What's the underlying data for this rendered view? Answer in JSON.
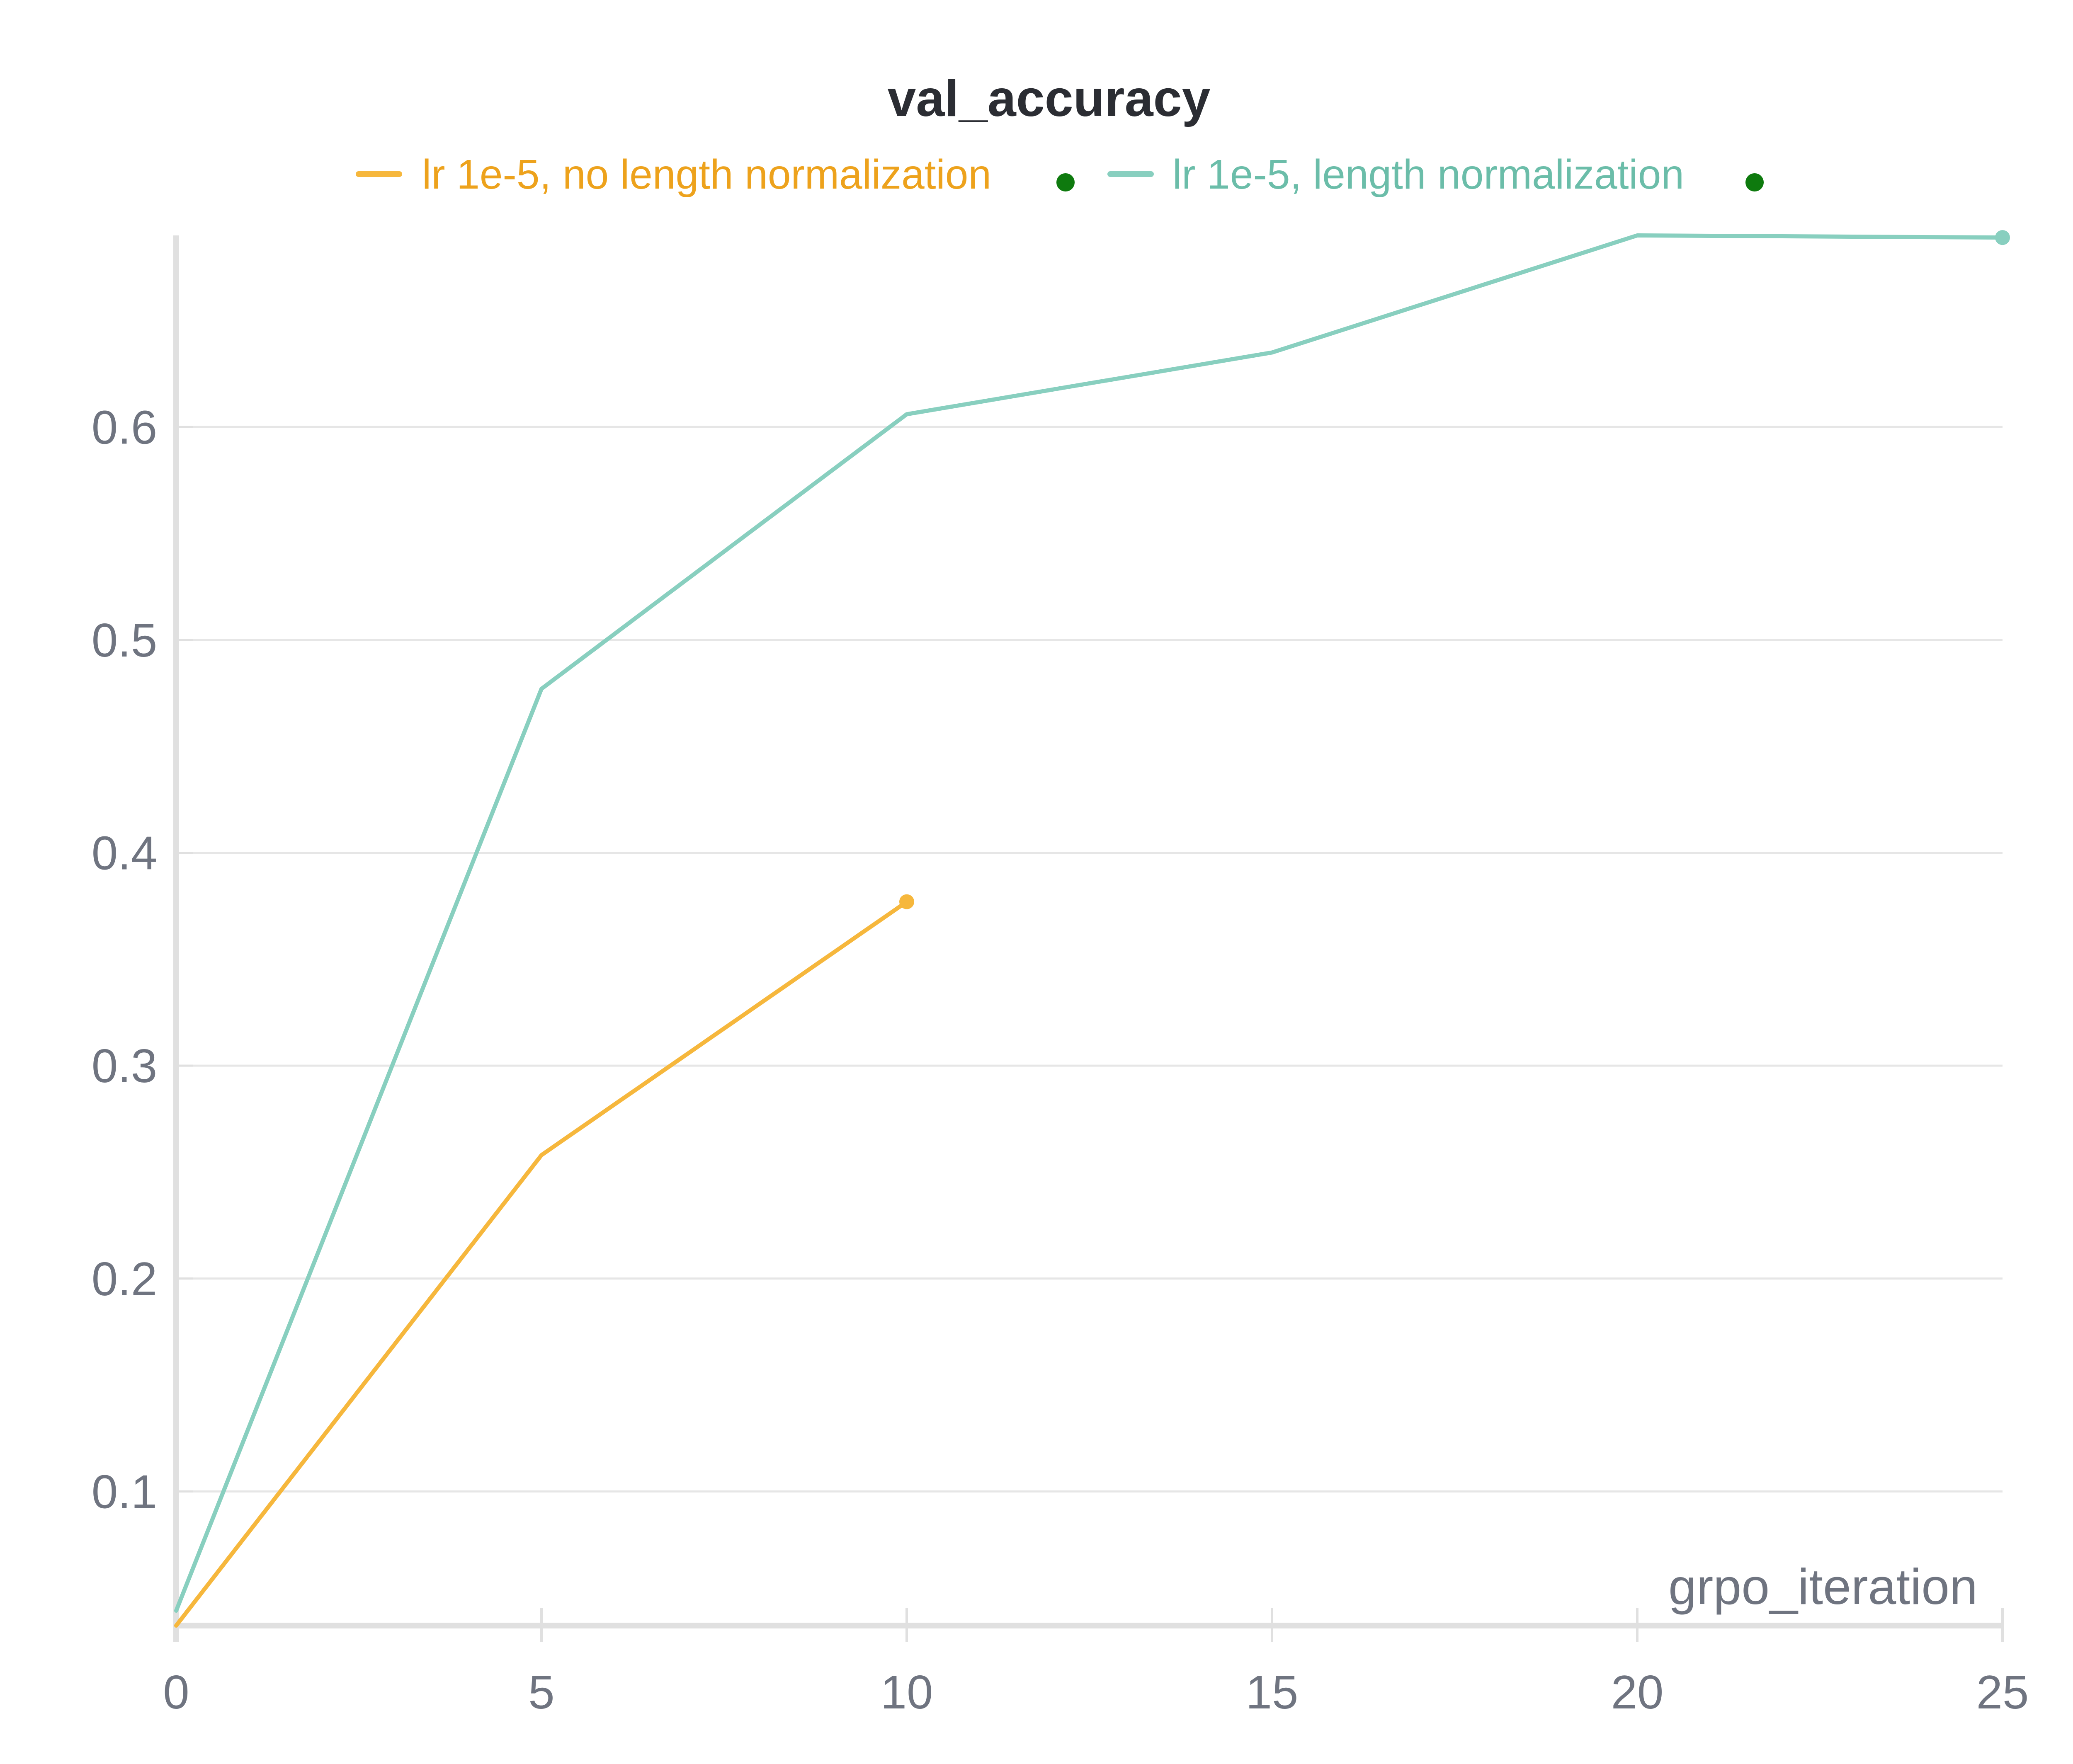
{
  "chart_data": {
    "type": "line",
    "title": "val_accuracy",
    "xlabel": "grpo_iteration",
    "ylabel": "",
    "xlim": [
      0,
      25
    ],
    "ylim": [
      0.037,
      0.69
    ],
    "xticks": [
      "0",
      "5",
      "10",
      "15",
      "20",
      "25"
    ],
    "yticks": [
      "0.1",
      "0.2",
      "0.3",
      "0.4",
      "0.5",
      "0.6"
    ],
    "grid": "horizontal",
    "legend_position": "top",
    "series": [
      {
        "name": "lr 1e-5, no length normalization",
        "color": "#f6b73c",
        "label_color": "#eda21c",
        "x": [
          0,
          5,
          10
        ],
        "y": [
          0.037,
          0.258,
          0.377
        ]
      },
      {
        "name": "lr 1e-5, length normalization",
        "color": "#88cfbf",
        "label_color": "#6bbda9",
        "x": [
          0,
          5,
          10,
          15,
          20,
          25
        ],
        "y": [
          0.044,
          0.477,
          0.606,
          0.635,
          0.69,
          0.689
        ]
      }
    ],
    "legend_dot_color": "#0e7a0e"
  }
}
